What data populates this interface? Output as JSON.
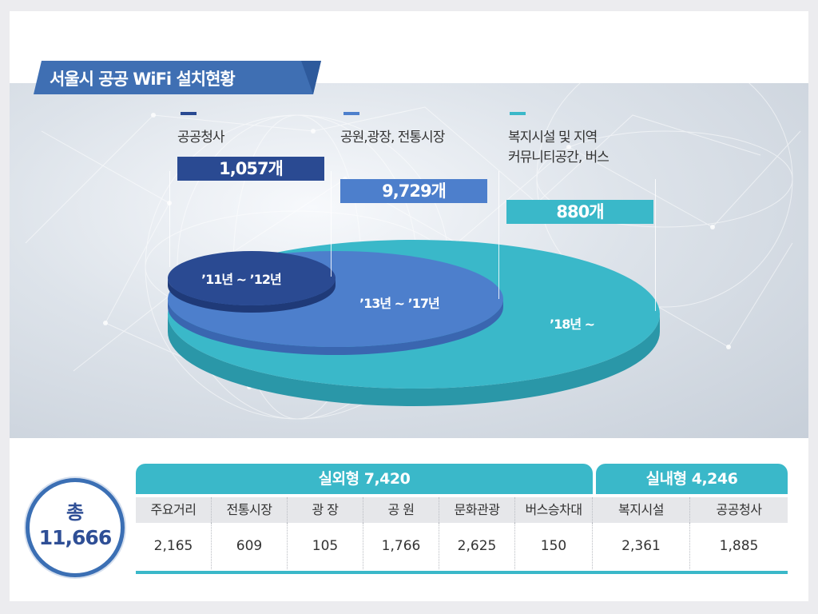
{
  "title": "서울시 공공 WiFi 설치현황",
  "colors": {
    "navy": "#2a4a92",
    "blue": "#4d7fcc",
    "teal": "#3ab8c9",
    "title_bar": "#3f6fb3"
  },
  "chart_data": {
    "type": "area",
    "categories": [
      {
        "label": "공공청사",
        "value_label": "1,057개",
        "value": 1057,
        "period": "’11년 ~ ’12년"
      },
      {
        "label": "공원,광장, 전통시장",
        "value_label": "9,729개",
        "value": 9729,
        "period": "’13년 ~ ’17년"
      },
      {
        "label": "복지시설 및 지역\n커뮤니티공간, 버스",
        "value_label": "880개",
        "value": 880,
        "period": "’18년 ~"
      }
    ]
  },
  "summary": {
    "total_label": "총",
    "total_value": "11,666"
  },
  "table": {
    "groups": [
      {
        "label": "실외형 7,420",
        "span": 6
      },
      {
        "label": "실내형 4,246",
        "span": 2
      }
    ],
    "headers": [
      "주요거리",
      "전통시장",
      "광  장",
      "공  원",
      "문화관광",
      "버스승차대",
      "복지시설",
      "공공청사"
    ],
    "values": [
      "2,165",
      "609",
      "105",
      "1,766",
      "2,625",
      "150",
      "2,361",
      "1,885"
    ]
  }
}
